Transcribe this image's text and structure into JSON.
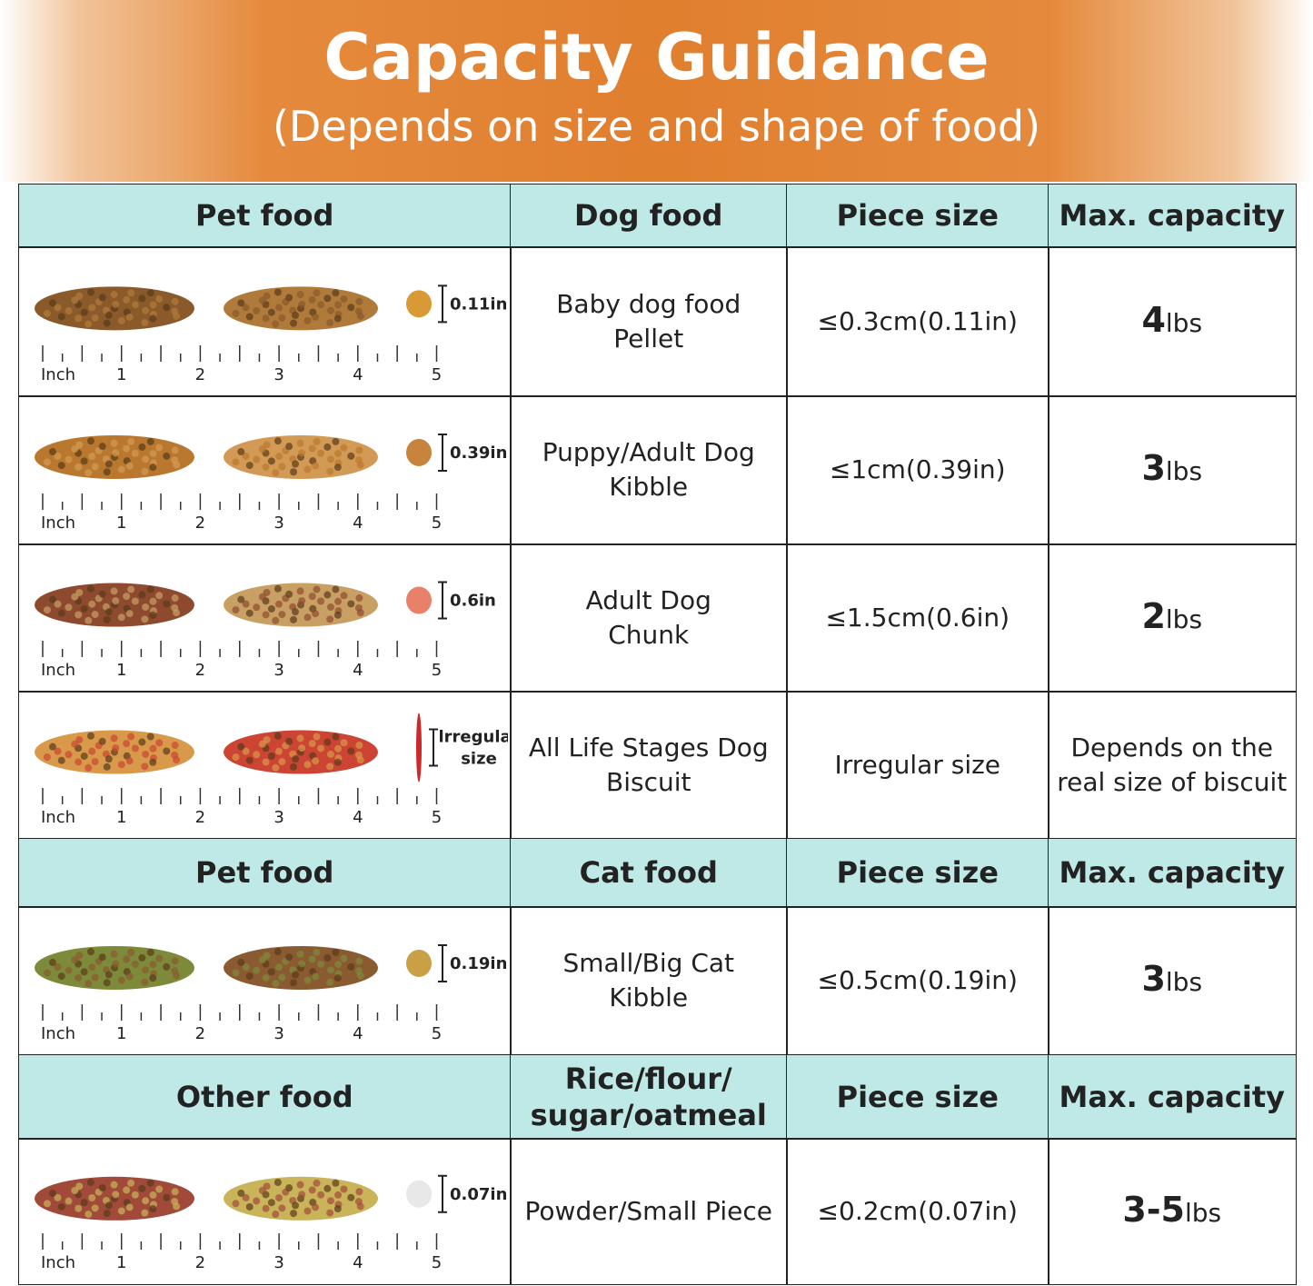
{
  "header": {
    "title": "Capacity Guidance",
    "subtitle": "(Depends on size and shape of food)"
  },
  "sections": [
    {
      "headers": [
        [
          "Pet food"
        ],
        [
          "Dog food"
        ],
        [
          "Piece size"
        ],
        [
          "Max. capacity"
        ]
      ],
      "rows": [
        {
          "piece_label": [
            "0.11in"
          ],
          "ruler": [
            "Inch",
            "1",
            "2",
            "3",
            "4",
            "5"
          ],
          "food": [
            "Baby dog food",
            "Pellet"
          ],
          "piece_size": "≤0.3cm(0.11in)",
          "capacity": {
            "amount": "4",
            "unit": "lbs"
          }
        },
        {
          "piece_label": [
            "0.39in"
          ],
          "ruler": [
            "Inch",
            "1",
            "2",
            "3",
            "4",
            "5"
          ],
          "food": [
            "Puppy/Adult Dog",
            "Kibble"
          ],
          "piece_size": "≤1cm(0.39in)",
          "capacity": {
            "amount": "3",
            "unit": "lbs"
          }
        },
        {
          "piece_label": [
            "0.6in"
          ],
          "ruler": [
            "Inch",
            "1",
            "2",
            "3",
            "4",
            "5"
          ],
          "food": [
            "Adult Dog",
            "Chunk"
          ],
          "piece_size": "≤1.5cm(0.6in)",
          "capacity": {
            "amount": "2",
            "unit": "lbs"
          }
        },
        {
          "piece_label": [
            "lrregular",
            "size"
          ],
          "ruler": [
            "Inch",
            "1",
            "2",
            "3",
            "4",
            "5"
          ],
          "food": [
            "All Life Stages Dog",
            "Biscuit"
          ],
          "piece_size": "Irregular size",
          "capacity": {
            "text": [
              "Depends on the",
              "real size of biscuit"
            ]
          }
        }
      ]
    },
    {
      "headers": [
        [
          "Pet food"
        ],
        [
          "Cat food"
        ],
        [
          "Piece size"
        ],
        [
          "Max. capacity"
        ]
      ],
      "rows": [
        {
          "piece_label": [
            "0.19in"
          ],
          "ruler": [
            "Inch",
            "1",
            "2",
            "3",
            "4",
            "5"
          ],
          "food": [
            "Small/Big Cat",
            "Kibble"
          ],
          "piece_size": "≤0.5cm(0.19in)",
          "capacity": {
            "amount": "3",
            "unit": "lbs"
          }
        }
      ]
    },
    {
      "headers": [
        [
          "Other food"
        ],
        [
          "Rice/flour/",
          "sugar/oatmeal"
        ],
        [
          "Piece size"
        ],
        [
          "Max. capacity"
        ]
      ],
      "rows": [
        {
          "piece_label": [
            "0.07in"
          ],
          "ruler": [
            "Inch",
            "1",
            "2",
            "3",
            "4",
            "5"
          ],
          "food": [
            "Powder/Small Piece"
          ],
          "piece_size": "≤0.2cm(0.07in)",
          "capacity": {
            "amount": "3-5",
            "unit": "lbs"
          }
        }
      ]
    }
  ]
}
